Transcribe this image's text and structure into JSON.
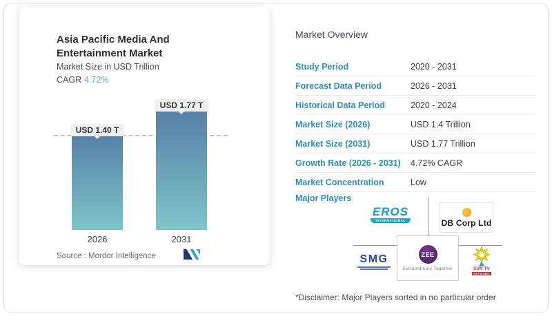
{
  "left_card": {
    "title": "Asia Pacific Media And Entertainment Market",
    "subtitle": "Market Size in USD Trillion",
    "cagr_label": "CAGR",
    "cagr_value": "4.72%",
    "source_label": "Source :  Mordor Intelligence"
  },
  "chart_data": {
    "type": "bar",
    "categories": [
      "2026",
      "2031"
    ],
    "values": [
      1.4,
      1.77
    ],
    "value_labels": [
      "USD 1.40 T",
      "USD 1.77 T"
    ],
    "title": "Asia Pacific Media And Entertainment Market",
    "ylabel": "Market Size in USD Trillion",
    "unit": "USD Trillion",
    "dashed_reference_value": 1.4,
    "bar_gradient_top": "#5680a8",
    "bar_gradient_bottom": "#7fc5c9",
    "grid": false,
    "legend": false
  },
  "overview": {
    "heading": "Market Overview",
    "rows": [
      {
        "label": "Study Period",
        "value": "2020 - 2031"
      },
      {
        "label": "Forecast Data Period",
        "value": "2026 - 2031"
      },
      {
        "label": "Historical Data Period",
        "value": "2020 - 2024"
      },
      {
        "label": "Market Size (2026)",
        "value": "USD 1.4 Trillion"
      },
      {
        "label": "Market Size (2031)",
        "value": "USD 1.77 Trillion"
      },
      {
        "label": "Growth Rate (2026 - 2031)",
        "value": "4.72% CAGR"
      },
      {
        "label": "Market Concentration",
        "value": "Low"
      }
    ],
    "major_players_label": "Major Players",
    "players": [
      {
        "name": "Eros International",
        "text": "EROS",
        "subtext": "INTERNATIONAL"
      },
      {
        "name": "DB Corp Ltd",
        "text": "DB Corp Ltd"
      },
      {
        "name": "SMG",
        "text": "SMG"
      },
      {
        "name": "Zee Entertainment",
        "text": "ZEE",
        "subtext": "Extraordinary Together"
      },
      {
        "name": "Sun TV Network",
        "text": "SUN TV",
        "subtext": "NETWORK"
      }
    ],
    "disclaimer": "*Disclaimer: Major Players sorted in no particular order"
  },
  "colors": {
    "accent_blue": "#2e8fc1",
    "teal_accent": "#4db3cd",
    "pill_background": "#edf0ef",
    "logo_navy": "#1b3a66",
    "logo_teal": "#2fa9bd"
  }
}
